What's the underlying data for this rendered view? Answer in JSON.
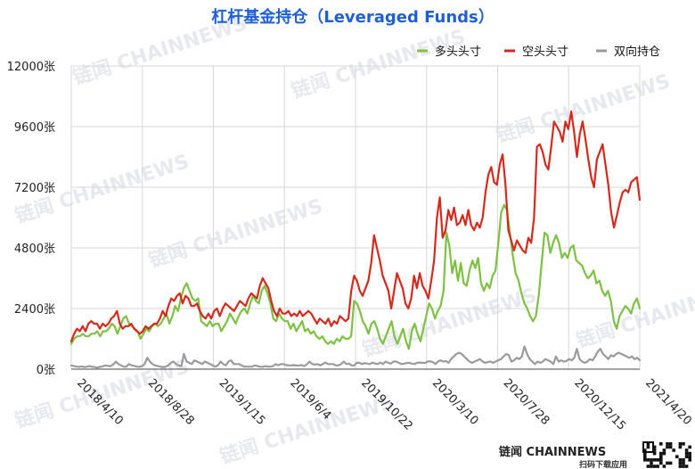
{
  "colors": {
    "title": "#1f5fd6",
    "long": "#7cc142",
    "short": "#d42a1e",
    "spread": "#9a9a9a",
    "grid": "#d7d7d7",
    "axis": "#444444",
    "watermark": "#e7e9ee"
  },
  "watermark": {
    "text": "链闻 CHAINNEWS"
  },
  "brand": {
    "name": "链闻 CHAINNEWS",
    "sub": "扫码下载应用"
  },
  "chart_data": {
    "type": "line",
    "title": "杠杆基金持仓（Leveraged Funds）",
    "x_ticks": [
      "2018/4/10",
      "2018/8/28",
      "2019/1/15",
      "2019/6/4",
      "2019/10/22",
      "2020/3/10",
      "2020/7/28",
      "2020/12/15",
      "2021/4/20"
    ],
    "y_ticks": [
      "12000张",
      "9600张",
      "7200张",
      "4800张",
      "2400张",
      "0张"
    ],
    "ylim": [
      0,
      12000
    ],
    "grid": true,
    "legend_position": "top-right",
    "series": [
      {
        "name": "多头头寸",
        "color_key": "long",
        "values": [
          1000,
          1200,
          1300,
          1300,
          1400,
          1300,
          1300,
          1400,
          1400,
          1500,
          1300,
          1500,
          1500,
          1600,
          1800,
          1700,
          1400,
          1700,
          2000,
          2100,
          1800,
          1700,
          1600,
          1500,
          1200,
          1400,
          1600,
          1500,
          1700,
          1800,
          1700,
          1800,
          2000,
          2200,
          1800,
          2100,
          2500,
          2300,
          2800,
          3200,
          3400,
          3100,
          2800,
          2700,
          2800,
          1900,
          1800,
          1700,
          1900,
          1700,
          1800,
          1800,
          1500,
          1700,
          1900,
          2200,
          2000,
          1800,
          2100,
          2300,
          2400,
          2200,
          2600,
          2900,
          2700,
          2600,
          3100,
          3300,
          3000,
          2600,
          2000,
          1900,
          2200,
          2000,
          1900,
          1900,
          1600,
          1800,
          1500,
          1700,
          1900,
          1500,
          1600,
          1400,
          1500,
          1300,
          1200,
          1300,
          1100,
          1000,
          1100,
          1000,
          1200,
          1100,
          1300,
          1200,
          1200,
          1300,
          2700,
          2600,
          2300,
          1900,
          1700,
          1400,
          1800,
          1900,
          1600,
          1200,
          1000,
          1300,
          1600,
          1900,
          1300,
          1000,
          1300,
          1600,
          1100,
          800,
          1500,
          1800,
          1400,
          1100,
          1600,
          2100,
          2600,
          2400,
          2000,
          2300,
          2500,
          3100,
          5400,
          4900,
          3800,
          4300,
          3500,
          4200,
          3400,
          3300,
          3900,
          4300,
          4000,
          4400,
          3400,
          3100,
          3400,
          3200,
          3700,
          3900,
          5000,
          6200,
          6500,
          6300,
          5400,
          4500,
          3800,
          3500,
          3000,
          2600,
          2400,
          2100,
          1900,
          2100,
          2900,
          4200,
          5400,
          5300,
          4600,
          5000,
          5300,
          5000,
          4400,
          4600,
          4400,
          4800,
          4900,
          4300,
          4200,
          4100,
          3800,
          3600,
          3700,
          3900,
          3400,
          3500,
          3100,
          2900,
          3100,
          2700,
          1900,
          1600,
          2100,
          2300,
          2500,
          2400,
          2200,
          2600,
          2800,
          2400
        ]
      },
      {
        "name": "空头头寸",
        "color_key": "short",
        "values": [
          1100,
          1400,
          1600,
          1500,
          1700,
          1500,
          1800,
          1900,
          1800,
          1800,
          1600,
          1800,
          1700,
          1800,
          2000,
          2100,
          2300,
          1800,
          1600,
          1700,
          1700,
          1800,
          1600,
          1500,
          1400,
          1500,
          1700,
          1600,
          1700,
          1800,
          1800,
          2000,
          2300,
          2100,
          2500,
          2800,
          2700,
          2900,
          3000,
          2600,
          2900,
          2800,
          2500,
          2500,
          2600,
          2300,
          2100,
          2000,
          2200,
          2000,
          2300,
          2400,
          2100,
          2400,
          2600,
          2500,
          2400,
          2300,
          2500,
          2700,
          2600,
          2500,
          2800,
          3000,
          2900,
          2800,
          3300,
          3600,
          3400,
          3200,
          2700,
          2300,
          2100,
          2400,
          2200,
          2200,
          2300,
          2100,
          2200,
          2100,
          2300,
          2100,
          2200,
          2300,
          2200,
          2000,
          1800,
          2000,
          1900,
          1800,
          2000,
          1700,
          1900,
          1800,
          2100,
          2000,
          1900,
          2000,
          3100,
          3700,
          3500,
          3100,
          2900,
          3200,
          3500,
          4200,
          5300,
          4800,
          4300,
          3700,
          3400,
          3100,
          2400,
          3100,
          3800,
          3500,
          3200,
          2600,
          2400,
          2800,
          3700,
          3200,
          3800,
          3300,
          3100,
          2800,
          3500,
          4300,
          6000,
          6800,
          5200,
          5500,
          6300,
          5900,
          6400,
          5700,
          5800,
          6100,
          5700,
          6300,
          5700,
          5500,
          5800,
          5600,
          6000,
          7000,
          7700,
          8000,
          7400,
          7300,
          8100,
          8500,
          7300,
          5500,
          5100,
          4700,
          5100,
          4900,
          4700,
          4600,
          5200,
          5000,
          6000,
          8800,
          8900,
          8600,
          8100,
          7900,
          8800,
          9800,
          9600,
          9400,
          9000,
          9800,
          9500,
          10200,
          9400,
          8400,
          9300,
          9800,
          9100,
          8300,
          7600,
          7200,
          8300,
          8600,
          8900,
          8100,
          7300,
          6200,
          5600,
          6100,
          6600,
          7000,
          7100,
          7000,
          7400,
          7500,
          7600,
          6700
        ]
      },
      {
        "name": "双向持仓",
        "color_key": "spread",
        "values": [
          150,
          120,
          100,
          90,
          110,
          80,
          100,
          120,
          90,
          80,
          60,
          90,
          110,
          150,
          130,
          120,
          180,
          300,
          200,
          150,
          100,
          90,
          200,
          150,
          130,
          100,
          90,
          120,
          200,
          450,
          300,
          200,
          150,
          120,
          100,
          80,
          90,
          150,
          250,
          300,
          200,
          150,
          120,
          600,
          300,
          250,
          200,
          350,
          300,
          250,
          200,
          300,
          250,
          200,
          150,
          100,
          150,
          300,
          200,
          150,
          300,
          350,
          200,
          200,
          200,
          150,
          100,
          100,
          100,
          100,
          150,
          120,
          100,
          90,
          120,
          100,
          100,
          120,
          200,
          150,
          200,
          200,
          160,
          150,
          150,
          160,
          140,
          150,
          160,
          120,
          200,
          300,
          200,
          180,
          200,
          150,
          200,
          260,
          200,
          200,
          200,
          150,
          150,
          200,
          300,
          200,
          220,
          150,
          150,
          250,
          250,
          200,
          240,
          220,
          200,
          260,
          220,
          200,
          260,
          200,
          300,
          250,
          220,
          300,
          300,
          250,
          200,
          220,
          240,
          250,
          220,
          200,
          250,
          260,
          250,
          240,
          300,
          310,
          280,
          200,
          300,
          350,
          300,
          320,
          250,
          400,
          500,
          600,
          650,
          600,
          500,
          400,
          300,
          250,
          300,
          350,
          400,
          300,
          250,
          280,
          300,
          250,
          300,
          350,
          400,
          500,
          600,
          550,
          300,
          350,
          450,
          400,
          500,
          900,
          600,
          400,
          300,
          200,
          300,
          250,
          300,
          400,
          350,
          300,
          200,
          500,
          300,
          350,
          300,
          320,
          400,
          350,
          450,
          800,
          400,
          300,
          250,
          300,
          400,
          350,
          500,
          700,
          800,
          600,
          500,
          400,
          550,
          500,
          600,
          650,
          600,
          550,
          500,
          450,
          500,
          400,
          450,
          350
        ]
      }
    ]
  }
}
